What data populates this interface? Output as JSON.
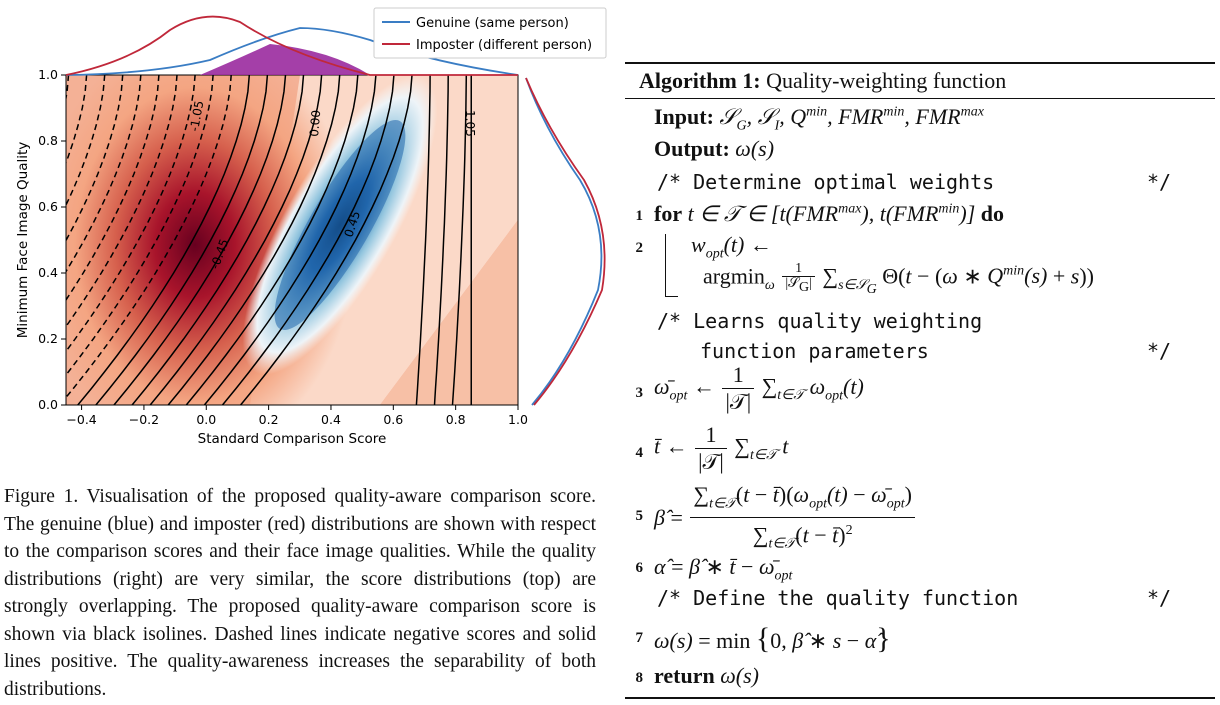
{
  "figure": {
    "legend": {
      "genuine": "Genuine (same person)",
      "imposter": "Imposter (different person)"
    },
    "colors": {
      "genuine": "#3a7dc4",
      "imposter": "#c0283a",
      "overlap": "#9a2a9e"
    },
    "xlabel": "Standard Comparison Score",
    "ylabel": "Minimum Face Image Quality",
    "xticks": [
      "−0.4",
      "−0.2",
      "0.0",
      "0.2",
      "0.4",
      "0.6",
      "0.8",
      "1.0"
    ],
    "yticks": [
      "0.0",
      "0.2",
      "0.4",
      "0.6",
      "0.8",
      "1.0"
    ],
    "contour_labels": [
      "-1.05",
      "0.00",
      "1.05",
      "-0.45",
      "0.45"
    ]
  },
  "chart_data": {
    "type": "heatmap",
    "title": "",
    "xlabel": "Standard Comparison Score",
    "ylabel": "Minimum Face Image Quality",
    "xlim": [
      -0.45,
      1.0
    ],
    "ylim": [
      0.0,
      1.0
    ],
    "imposter_center": [
      0.0,
      0.5
    ],
    "genuine_center": [
      0.4,
      0.5
    ],
    "isoline_labels": [
      -1.05,
      -0.45,
      0.0,
      0.45,
      1.05
    ],
    "legend": [
      "Genuine (same person)",
      "Imposter (different person)"
    ],
    "legend_position": "top-right"
  },
  "caption": "Figure 1. Visualisation of the proposed quality-aware comparison score. The genuine (blue) and imposter (red) distributions are shown with respect to the comparison scores and their face image qualities. While the quality distributions (right) are very similar, the score distributions (top) are strongly overlapping. The proposed quality-aware comparison score is shown via black isolines. Dashed lines indicate negative scores and solid lines positive. The quality-awareness increases the separability of both distributions.",
  "algorithm": {
    "title_bold": "Algorithm 1:",
    "title_rest": "Quality-weighting function",
    "input_kw": "Input:",
    "output_kw": "Output:",
    "comment1": "/* Determine optimal weights",
    "comment2a": "/* Learns quality weighting",
    "comment2b": "function parameters",
    "comment3": "/* Define the quality function",
    "comment_end": "*/",
    "for_kw": "for",
    "do_kw": "do",
    "return_kw": "return",
    "line_numbers": [
      "1",
      "2",
      "3",
      "4",
      "5",
      "6",
      "7",
      "8"
    ]
  }
}
